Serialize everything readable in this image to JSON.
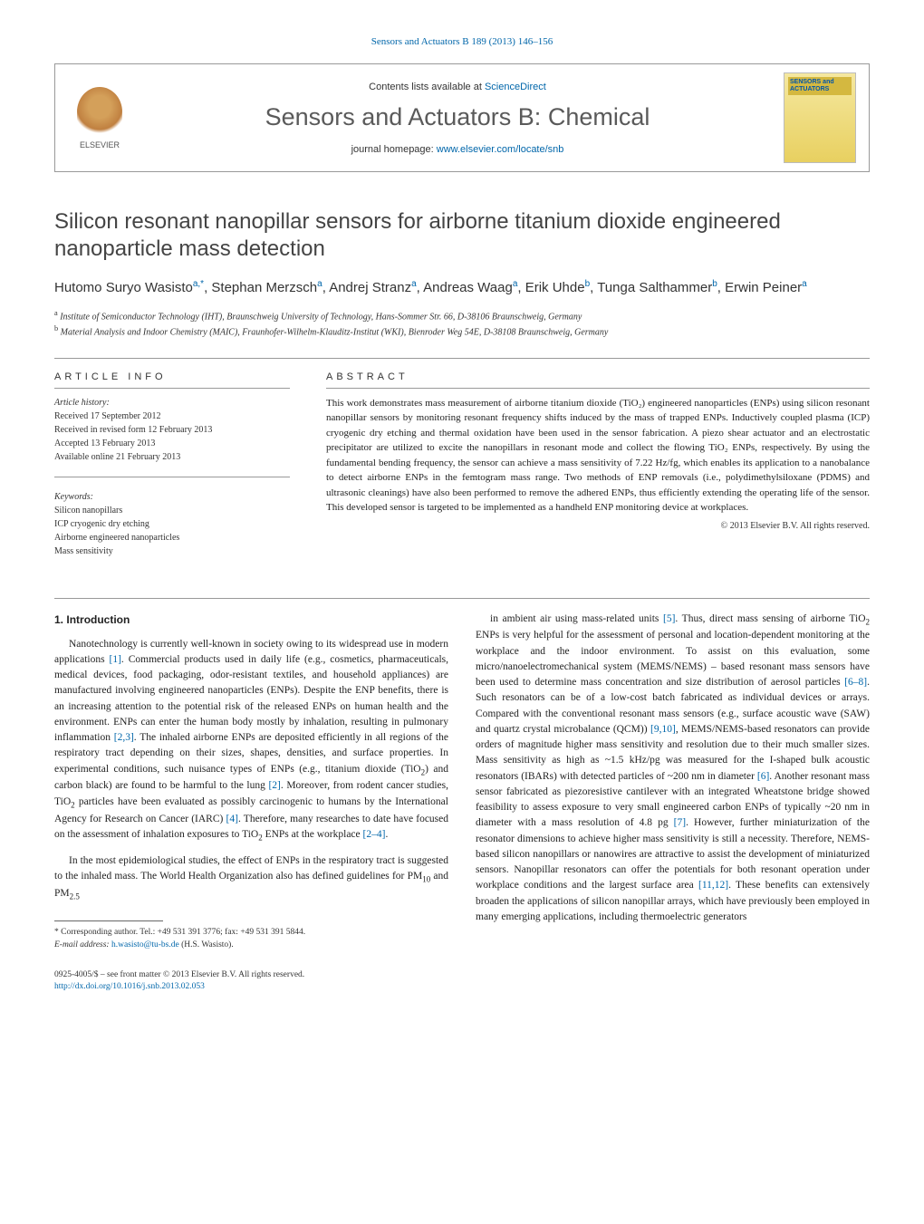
{
  "topline": "Sensors and Actuators B 189 (2013) 146–156",
  "header": {
    "contents_prefix": "Contents lists available at ",
    "contents_link": "ScienceDirect",
    "journal_name": "Sensors and Actuators B: Chemical",
    "homepage_prefix": "journal homepage: ",
    "homepage_url": "www.elsevier.com/locate/snb",
    "publisher": "ELSEVIER",
    "cover_label": "SENSORS\nand\nACTUATORS"
  },
  "title": "Silicon resonant nanopillar sensors for airborne titanium dioxide engineered nanoparticle mass detection",
  "authors_html": "Hutomo Suryo Wasisto<sup>a,*</sup>, Stephan Merzsch<sup>a</sup>, Andrej Stranz<sup>a</sup>, Andreas Waag<sup>a</sup>, Erik Uhde<sup>b</sup>, Tunga Salthammer<sup>b</sup>, Erwin Peiner<sup>a</sup>",
  "affiliations": [
    {
      "sup": "a",
      "text": "Institute of Semiconductor Technology (IHT), Braunschweig University of Technology, Hans-Sommer Str. 66, D-38106 Braunschweig, Germany"
    },
    {
      "sup": "b",
      "text": "Material Analysis and Indoor Chemistry (MAIC), Fraunhofer-Wilhelm-Klauditz-Institut (WKI), Bienroder Weg 54E, D-38108 Braunschweig, Germany"
    }
  ],
  "article_info": {
    "head": "ARTICLE INFO",
    "history_label": "Article history:",
    "history": [
      "Received 17 September 2012",
      "Received in revised form 12 February 2013",
      "Accepted 13 February 2013",
      "Available online 21 February 2013"
    ],
    "keywords_label": "Keywords:",
    "keywords": [
      "Silicon nanopillars",
      "ICP cryogenic dry etching",
      "Airborne engineered nanoparticles",
      "Mass sensitivity"
    ]
  },
  "abstract": {
    "head": "ABSTRACT",
    "text": "This work demonstrates mass measurement of airborne titanium dioxide (TiO₂) engineered nanoparticles (ENPs) using silicon resonant nanopillar sensors by monitoring resonant frequency shifts induced by the mass of trapped ENPs. Inductively coupled plasma (ICP) cryogenic dry etching and thermal oxidation have been used in the sensor fabrication. A piezo shear actuator and an electrostatic precipitator are utilized to excite the nanopillars in resonant mode and collect the flowing TiO₂ ENPs, respectively. By using the fundamental bending frequency, the sensor can achieve a mass sensitivity of 7.22 Hz/fg, which enables its application to a nanobalance to detect airborne ENPs in the femtogram mass range. Two methods of ENP removals (i.e., polydimethylsiloxane (PDMS) and ultrasonic cleanings) have also been performed to remove the adhered ENPs, thus efficiently extending the operating life of the sensor. This developed sensor is targeted to be implemented as a handheld ENP monitoring device at workplaces.",
    "copyright": "© 2013 Elsevier B.V. All rights reserved."
  },
  "body": {
    "section_number": "1.",
    "section_title": "Introduction",
    "col1_paras": [
      "Nanotechnology is currently well-known in society owing to its widespread use in modern applications <span class=\"ref\">[1]</span>. Commercial products used in daily life (e.g., cosmetics, pharmaceuticals, medical devices, food packaging, odor-resistant textiles, and household appliances) are manufactured involving engineered nanoparticles (ENPs). Despite the ENP benefits, there is an increasing attention to the potential risk of the released ENPs on human health and the environment. ENPs can enter the human body mostly by inhalation, resulting in pulmonary inflammation <span class=\"ref\">[2,3]</span>. The inhaled airborne ENPs are deposited efficiently in all regions of the respiratory tract depending on their sizes, shapes, densities, and surface properties. In experimental conditions, such nuisance types of ENPs (e.g., titanium dioxide (TiO<span class=\"sub\">2</span>) and carbon black) are found to be harmful to the lung <span class=\"ref\">[2]</span>. Moreover, from rodent cancer studies, TiO<span class=\"sub\">2</span> particles have been evaluated as possibly carcinogenic to humans by the International Agency for Research on Cancer (IARC) <span class=\"ref\">[4]</span>. Therefore, many researches to date have focused on the assessment of inhalation exposures to TiO<span class=\"sub\">2</span> ENPs at the workplace <span class=\"ref\">[2–4]</span>.",
      "In the most epidemiological studies, the effect of ENPs in the respiratory tract is suggested to the inhaled mass. The World Health Organization also has defined guidelines for PM<span class=\"sub\">10</span> and PM<span class=\"sub\">2.5</span>"
    ],
    "col2_paras": [
      "in ambient air using mass-related units <span class=\"ref\">[5]</span>. Thus, direct mass sensing of airborne TiO<span class=\"sub\">2</span> ENPs is very helpful for the assessment of personal and location-dependent monitoring at the workplace and the indoor environment. To assist on this evaluation, some micro/nanoelectromechanical system (MEMS/NEMS) – based resonant mass sensors have been used to determine mass concentration and size distribution of aerosol particles <span class=\"ref\">[6–8]</span>. Such resonators can be of a low-cost batch fabricated as individual devices or arrays. Compared with the conventional resonant mass sensors (e.g., surface acoustic wave (SAW) and quartz crystal microbalance (QCM)) <span class=\"ref\">[9,10]</span>, MEMS/NEMS-based resonators can provide orders of magnitude higher mass sensitivity and resolution due to their much smaller sizes. Mass sensitivity as high as ~1.5 kHz/pg was measured for the I-shaped bulk acoustic resonators (IBARs) with detected particles of ~200 nm in diameter <span class=\"ref\">[6]</span>. Another resonant mass sensor fabricated as piezoresistive cantilever with an integrated Wheatstone bridge showed feasibility to assess exposure to very small engineered carbon ENPs of typically ~20 nm in diameter with a mass resolution of 4.8 pg <span class=\"ref\">[7]</span>. However, further miniaturization of the resonator dimensions to achieve higher mass sensitivity is still a necessity. Therefore, NEMS-based silicon nanopillars or nanowires are attractive to assist the development of miniaturized sensors. Nanopillar resonators can offer the potentials for both resonant operation under workplace conditions and the largest surface area <span class=\"ref\">[11,12]</span>. These benefits can extensively broaden the applications of silicon nanopillar arrays, which have previously been employed in many emerging applications, including thermoelectric generators"
    ]
  },
  "footnote": {
    "corresp_label": "* Corresponding author. Tel.: +49 531 391 3776; fax: +49 531 391 5844.",
    "email_label": "E-mail address: ",
    "email": "h.wasisto@tu-bs.de",
    "email_name": " (H.S. Wasisto)."
  },
  "bottom": {
    "issn": "0925-4005/$ – see front matter © 2013 Elsevier B.V. All rights reserved.",
    "doi": "http://dx.doi.org/10.1016/j.snb.2013.02.053"
  },
  "colors": {
    "link": "#0066aa",
    "text_grey": "#5a5a5a",
    "border": "#999999"
  }
}
